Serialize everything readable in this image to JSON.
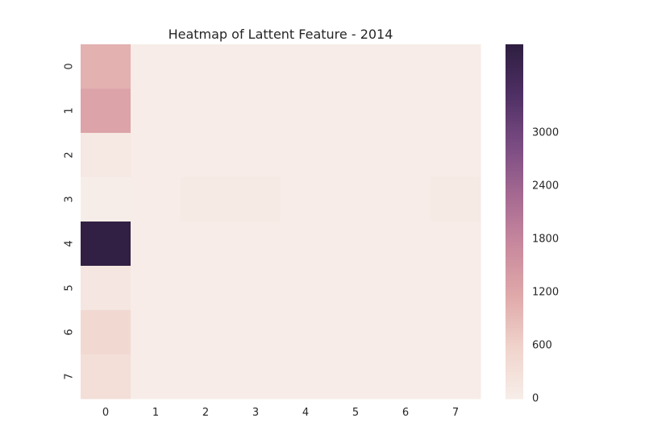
{
  "chart_data": {
    "type": "heatmap",
    "title": "Heatmap of Lattent Feature - 2014",
    "xlabel": "",
    "ylabel": "",
    "x_categories": [
      "0",
      "1",
      "2",
      "3",
      "4",
      "5",
      "6",
      "7"
    ],
    "y_categories": [
      "0",
      "1",
      "2",
      "3",
      "4",
      "5",
      "6",
      "7"
    ],
    "values": [
      [
        1050,
        15,
        15,
        15,
        15,
        15,
        15,
        15
      ],
      [
        1250,
        15,
        15,
        15,
        15,
        15,
        15,
        15
      ],
      [
        120,
        15,
        15,
        15,
        15,
        15,
        15,
        15
      ],
      [
        5,
        15,
        60,
        60,
        15,
        15,
        15,
        60
      ],
      [
        3950,
        15,
        15,
        15,
        15,
        15,
        15,
        15
      ],
      [
        150,
        15,
        15,
        15,
        15,
        15,
        15,
        15
      ],
      [
        450,
        15,
        15,
        15,
        15,
        15,
        15,
        15
      ],
      [
        330,
        15,
        15,
        15,
        15,
        15,
        15,
        15
      ]
    ],
    "colorbar": {
      "min": 0,
      "max": 4000,
      "ticks": [
        "0",
        "600",
        "1200",
        "1800",
        "2400",
        "3000"
      ]
    },
    "colorscale": [
      "#f7ede8",
      "#f0d4cc",
      "#e0aaaa",
      "#c98a9e",
      "#a66a92",
      "#7a4c82",
      "#4f3064",
      "#2e1f40"
    ],
    "grid": false
  }
}
